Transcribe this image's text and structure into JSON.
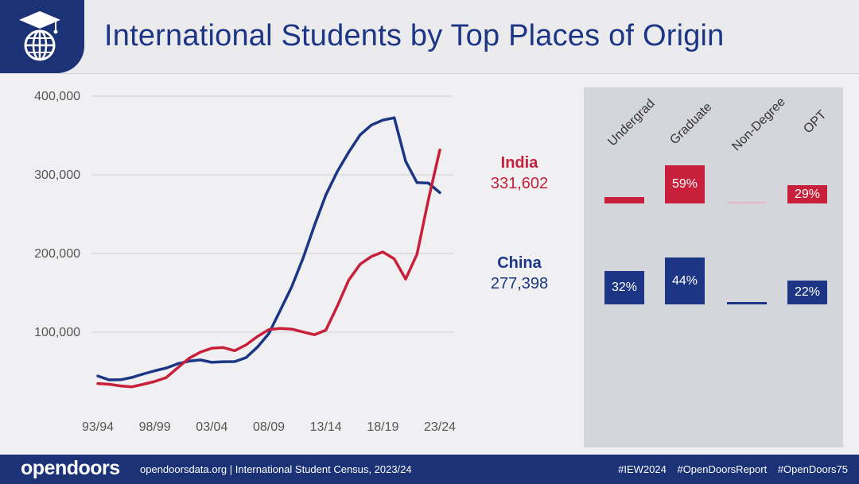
{
  "header": {
    "title": "International Students by Top Places of Origin",
    "logo_icon": "graduation-globe-icon"
  },
  "chart_data": {
    "type": "line",
    "title": "",
    "xlabel": "",
    "ylabel": "",
    "ylim": [
      0,
      400000
    ],
    "y_ticks": [
      100000,
      200000,
      300000,
      400000
    ],
    "y_tick_labels": [
      "100,000",
      "200,000",
      "300,000",
      "400,000"
    ],
    "x_tick_labels": [
      "93/94",
      "98/99",
      "03/04",
      "08/09",
      "13/14",
      "18/19",
      "23/24"
    ],
    "grid": true,
    "x": [
      "93/94",
      "94/95",
      "95/96",
      "96/97",
      "97/98",
      "98/99",
      "99/00",
      "00/01",
      "01/02",
      "02/03",
      "03/04",
      "04/05",
      "05/06",
      "06/07",
      "07/08",
      "08/09",
      "09/10",
      "10/11",
      "11/12",
      "12/13",
      "13/14",
      "14/15",
      "15/16",
      "16/17",
      "17/18",
      "18/19",
      "19/20",
      "20/21",
      "21/22",
      "22/23",
      "23/24"
    ],
    "series": [
      {
        "name": "India",
        "color": "#c8203a",
        "values": [
          34796,
          33818,
          31743,
          30641,
          33818,
          37482,
          42337,
          54664,
          66836,
          74603,
          79736,
          80466,
          76503,
          83833,
          94563,
          103260,
          104897,
          103895,
          100270,
          96754,
          102673,
          132888,
          165918,
          186267,
          196271,
          202014,
          193124,
          167582,
          199182,
          268923,
          331602
        ]
      },
      {
        "name": "China",
        "color": "#1c3685",
        "values": [
          44381,
          39403,
          39613,
          42503,
          46958,
          51001,
          54466,
          59939,
          63211,
          64757,
          61765,
          62523,
          62582,
          67723,
          81127,
          98235,
          127628,
          157558,
          194029,
          235597,
          274439,
          304040,
          328547,
          350755,
          363341,
          369548,
          372532,
          317299,
          290086,
          289526,
          277398
        ]
      }
    ]
  },
  "callouts": {
    "india": {
      "name": "India",
      "value": "331,602"
    },
    "china": {
      "name": "China",
      "value": "277,398"
    }
  },
  "breakdown": {
    "columns": [
      "Undergrad",
      "Graduate",
      "Non-Degree",
      "OPT"
    ],
    "india": {
      "undergrad": null,
      "graduate": "59%",
      "non_degree": null,
      "opt": "29%"
    },
    "china": {
      "undergrad": "32%",
      "graduate": "44%",
      "non_degree": null,
      "opt": "22%"
    }
  },
  "footer": {
    "brand": "opendoors",
    "text": "opendoorsdata.org  |  International Student Census, 2023/24",
    "hashtags": [
      "#IEW2024",
      "#OpenDoorsReport",
      "#OpenDoors75"
    ]
  },
  "colors": {
    "navy": "#1c3276",
    "india_red": "#c8203a",
    "china_blue": "#1c3685",
    "panel_gray": "#d5d6db"
  }
}
